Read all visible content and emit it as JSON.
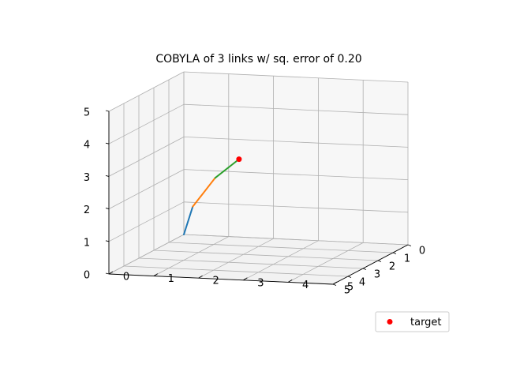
{
  "chart_data": {
    "type": "line3d",
    "title": "COBYLA of 3 links w/ sq. error of 0.20",
    "xlim": [
      0,
      5
    ],
    "ylim": [
      0,
      5
    ],
    "zlim": [
      0,
      5
    ],
    "x_ticks": [
      "0",
      "1",
      "2",
      "3",
      "4",
      "5"
    ],
    "y_ticks": [
      "0",
      "1",
      "2",
      "3",
      "4",
      "5"
    ],
    "z_ticks": [
      "0",
      "1",
      "2",
      "3",
      "4",
      "5"
    ],
    "grid": true,
    "series": [
      {
        "color": "#1f77b4",
        "points": [
          [
            0.0,
            0.0,
            0.0
          ],
          [
            0.3,
            0.3,
            0.95
          ]
        ]
      },
      {
        "color": "#ff7f0e",
        "points": [
          [
            0.3,
            0.3,
            0.95
          ],
          [
            1.2,
            1.1,
            2.1
          ]
        ]
      },
      {
        "color": "#2ca02c",
        "points": [
          [
            1.2,
            1.1,
            2.1
          ],
          [
            2.3,
            2.0,
            3.0
          ]
        ]
      }
    ],
    "target": {
      "name": "target",
      "color": "#ff0000",
      "point": [
        2.3,
        2.0,
        3.0
      ]
    },
    "legend": {
      "placement": "lower-right",
      "entries": [
        "target"
      ]
    }
  }
}
